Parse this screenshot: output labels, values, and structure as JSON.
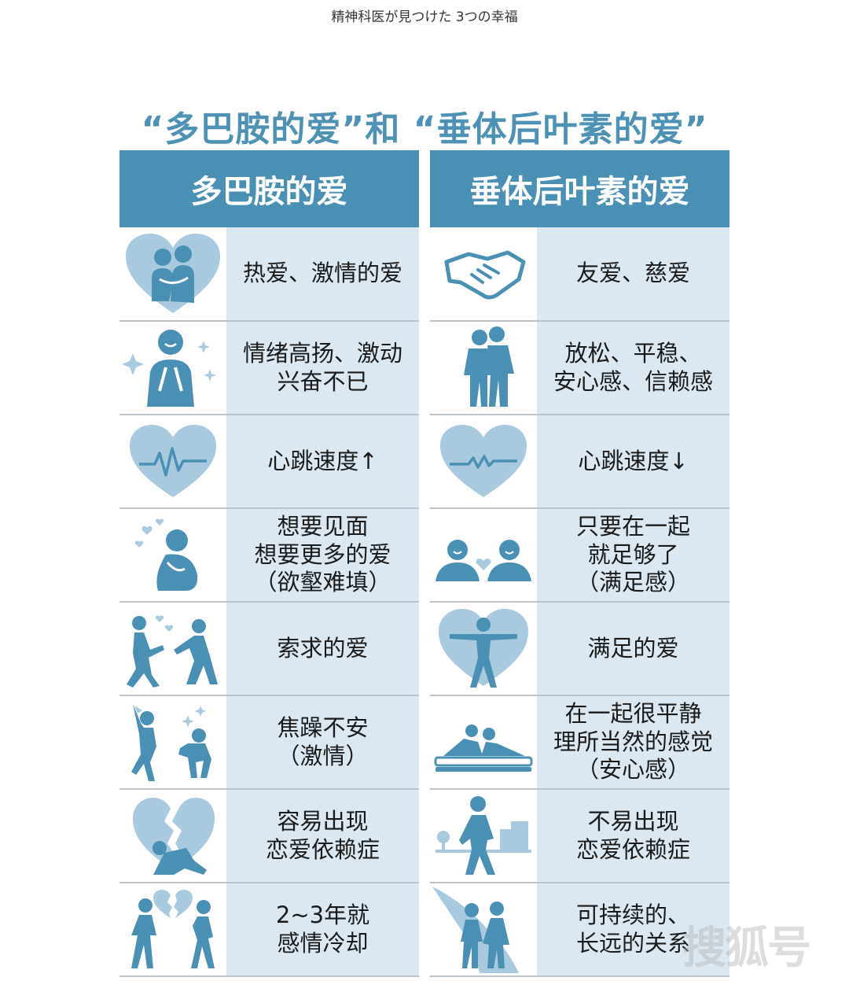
{
  "header": {
    "caption": "精神科医が見つけた 3つの幸福",
    "title": "“多巴胺的爱”和 “垂体后叶素的爱”"
  },
  "columns": [
    {
      "heading": "多巴胺的爱",
      "rows": [
        {
          "text": "热爱、激情的爱",
          "icon": "hugging-couple-heart-icon"
        },
        {
          "text": "情绪高扬、激动\n兴奋不已",
          "icon": "excited-person-icon"
        },
        {
          "text": "心跳速度↑",
          "icon": "heartbeat-heart-icon"
        },
        {
          "text": "想要见面\n想要更多的爱\n（欲壑难填）",
          "icon": "longing-person-icon"
        },
        {
          "text": "索求的爱",
          "icon": "chasing-people-icon"
        },
        {
          "text": "焦躁不安\n（激情）",
          "icon": "agitated-people-icon"
        },
        {
          "text": "容易出现\n恋爱依赖症",
          "icon": "broken-heart-kneeling-icon"
        },
        {
          "text": "2~3年就\n感情冷却",
          "icon": "couple-parting-icon"
        }
      ]
    },
    {
      "heading": "垂体后叶素的爱",
      "rows": [
        {
          "text": "友爱、慈爱",
          "icon": "handshake-icon"
        },
        {
          "text": "放松、平稳、\n安心感、信赖感",
          "icon": "elderly-couple-icon"
        },
        {
          "text": "心跳速度↓",
          "icon": "calm-heartbeat-heart-icon"
        },
        {
          "text": "只要在一起\n就足够了\n（满足感）",
          "icon": "couple-small-heart-icon"
        },
        {
          "text": "满足的爱",
          "icon": "person-in-heart-icon"
        },
        {
          "text": "在一起很平静\n理所当然的感觉\n（安心感）",
          "icon": "couple-lying-icon"
        },
        {
          "text": "不易出现\n恋爱依赖症",
          "icon": "walking-person-city-icon"
        },
        {
          "text": "可持续的、\n长远的关系",
          "icon": "couple-walking-path-icon"
        }
      ]
    }
  ],
  "watermark": "搜狐号",
  "colors": {
    "accent": "#4a90b4",
    "title": "#4d92b5",
    "cell_bg": "#dbe8f2",
    "icon_light": "#a9c9de",
    "icon_dark": "#4a90b4"
  }
}
